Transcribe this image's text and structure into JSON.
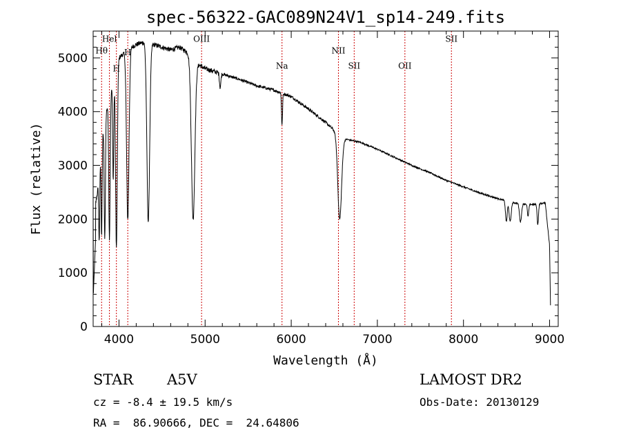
{
  "chart_data": {
    "type": "line",
    "title": "spec-56322-GAC089N24V1_sp14-249.fits",
    "xlabel": "Wavelength (Å)",
    "ylabel": "Flux (relative)",
    "xlim": [
      3700,
      9100
    ],
    "ylim": [
      0,
      5500
    ],
    "xticks": [
      4000,
      5000,
      6000,
      7000,
      8000,
      9000
    ],
    "yticks": [
      0,
      1000,
      2000,
      3000,
      4000,
      5000
    ],
    "xtick_labels": [
      "4000",
      "5000",
      "6000",
      "7000",
      "8000",
      "9000"
    ],
    "ytick_labels": [
      "0",
      "1000",
      "2000",
      "3000",
      "4000",
      "5000"
    ],
    "line_color": "#000000",
    "marker_color": "#cc0000",
    "grid": false,
    "lines": [
      {
        "label": "Hel",
        "wavelength": 3889,
        "y": 5300
      },
      {
        "label": "Hθ",
        "wavelength": 3798,
        "y": 5080
      },
      {
        "label": "H",
        "wavelength": 3970,
        "y": 4750
      },
      {
        "label": "H",
        "wavelength": 4102,
        "y": 5050
      },
      {
        "label": "OIII",
        "wavelength": 4959,
        "y": 5300
      },
      {
        "label": "Na",
        "wavelength": 5893,
        "y": 4800
      },
      {
        "label": "NII",
        "wavelength": 6548,
        "y": 5080
      },
      {
        "label": "SII",
        "wavelength": 6731,
        "y": 4800
      },
      {
        "label": "OII",
        "wavelength": 7320,
        "y": 4800
      },
      {
        "label": "SII",
        "wavelength": 7860,
        "y": 5300
      }
    ],
    "continuum": [
      [
        3700,
        2000
      ],
      [
        3750,
        2500
      ],
      [
        3800,
        3500
      ],
      [
        3850,
        4000
      ],
      [
        3900,
        4300
      ],
      [
        3950,
        4700
      ],
      [
        4000,
        5000
      ],
      [
        4100,
        5150
      ],
      [
        4200,
        5250
      ],
      [
        4300,
        5300
      ],
      [
        4400,
        5250
      ],
      [
        4500,
        5200
      ],
      [
        4600,
        5150
      ],
      [
        4700,
        5200
      ],
      [
        4800,
        5100
      ],
      [
        4900,
        4900
      ],
      [
        5000,
        4800
      ],
      [
        5200,
        4700
      ],
      [
        5400,
        4600
      ],
      [
        5600,
        4480
      ],
      [
        5800,
        4400
      ],
      [
        6000,
        4280
      ],
      [
        6200,
        4050
      ],
      [
        6400,
        3800
      ],
      [
        6500,
        3650
      ],
      [
        6600,
        3500
      ],
      [
        6800,
        3430
      ],
      [
        7000,
        3300
      ],
      [
        7200,
        3150
      ],
      [
        7400,
        3000
      ],
      [
        7600,
        2870
      ],
      [
        7800,
        2720
      ],
      [
        8000,
        2600
      ],
      [
        8200,
        2480
      ],
      [
        8400,
        2380
      ],
      [
        8600,
        2300
      ],
      [
        8800,
        2270
      ],
      [
        8950,
        2300
      ],
      [
        9000,
        1500
      ],
      [
        9010,
        400
      ]
    ],
    "absorptions": [
      {
        "wavelength": 3770,
        "min": 1600,
        "width": 6
      },
      {
        "wavelength": 3798,
        "min": 1700,
        "width": 6
      },
      {
        "wavelength": 3835,
        "min": 1600,
        "width": 7
      },
      {
        "wavelength": 3889,
        "min": 1650,
        "width": 8
      },
      {
        "wavelength": 3933,
        "min": 2700,
        "width": 6
      },
      {
        "wavelength": 3970,
        "min": 1450,
        "width": 10
      },
      {
        "wavelength": 4102,
        "min": 2000,
        "width": 14
      },
      {
        "wavelength": 4340,
        "min": 1950,
        "width": 16
      },
      {
        "wavelength": 4861,
        "min": 2000,
        "width": 20
      },
      {
        "wavelength": 5175,
        "min": 4450,
        "width": 8
      },
      {
        "wavelength": 5893,
        "min": 3750,
        "width": 6
      },
      {
        "wavelength": 6563,
        "min": 2000,
        "width": 22
      },
      {
        "wavelength": 8498,
        "min": 1950,
        "width": 10
      },
      {
        "wavelength": 8542,
        "min": 1950,
        "width": 12
      },
      {
        "wavelength": 8662,
        "min": 1950,
        "width": 12
      },
      {
        "wavelength": 8750,
        "min": 2050,
        "width": 8
      },
      {
        "wavelength": 8863,
        "min": 1900,
        "width": 8
      }
    ]
  },
  "info": {
    "object_class": "STAR",
    "subclass": "A5V",
    "redshift": "cz = -8.4 ± 19.5 km/s",
    "coords": "RA =  86.90666, DEC =  24.64806",
    "survey": "LAMOST DR2",
    "obs_date": "Obs-Date: 20130129"
  }
}
